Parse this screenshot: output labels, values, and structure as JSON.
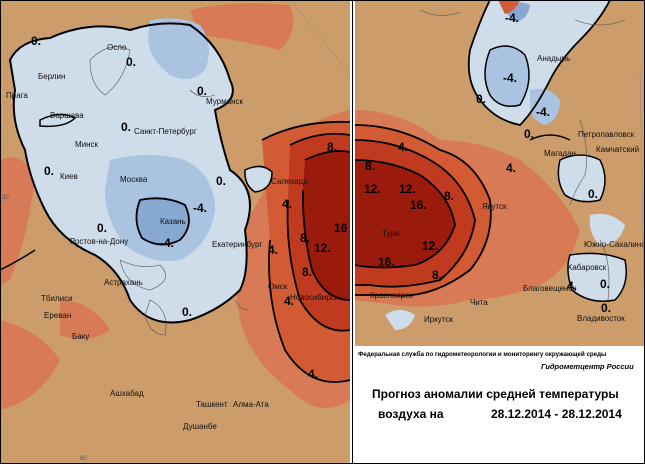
{
  "header": {
    "agency": "Федеральная служба по гидрометеорологии и мониторингу окружающей среды",
    "brand": "Гидрометцентр России"
  },
  "title": {
    "line1": "Прогноз аномалии средней температуры",
    "line2_label": "воздуха на",
    "period": "28.12.2014 - 28.12.2014"
  },
  "colors": {
    "cold_light": "#cfdcea",
    "cold_medium": "#a9c3e0",
    "cold_strong": "#87a8d0",
    "near_normal": "#cc9c6a",
    "warm_light": "#d87a56",
    "warm_medium": "#d35b34",
    "warm_strong": "#c03a1f",
    "warm_extreme": "#9a1a0c"
  },
  "grid_labels": {
    "lat_30": "30",
    "lon_60": "60"
  },
  "left_map": {
    "cities": [
      {
        "id": "oslo",
        "name": "Осло"
      },
      {
        "id": "berlin",
        "name": "Берлин"
      },
      {
        "id": "praga",
        "name": "Прага"
      },
      {
        "id": "varshava",
        "name": "Варшава"
      },
      {
        "id": "minsk",
        "name": "Минск"
      },
      {
        "id": "kiev",
        "name": "Киев"
      },
      {
        "id": "moskva",
        "name": "Москва"
      },
      {
        "id": "spb",
        "name": "Санкт-Петербург"
      },
      {
        "id": "murmansk",
        "name": "Мурманск"
      },
      {
        "id": "kazan",
        "name": "Казань"
      },
      {
        "id": "rostov",
        "name": "Ростов-на-Дону"
      },
      {
        "id": "astrakhan",
        "name": "Астрахань"
      },
      {
        "id": "tbilisi",
        "name": "Тбилиси"
      },
      {
        "id": "erevan",
        "name": "Ереван"
      },
      {
        "id": "baku",
        "name": "Баку"
      },
      {
        "id": "ashkhabad",
        "name": "Ашхабад"
      },
      {
        "id": "tashkent",
        "name": "Ташкент"
      },
      {
        "id": "almaty",
        "name": "Алма-Ата"
      },
      {
        "id": "dushanbe",
        "name": "Душанбе"
      },
      {
        "id": "ekb",
        "name": "Екатеринбург"
      },
      {
        "id": "salekhard",
        "name": "Салехард"
      },
      {
        "id": "omsk",
        "name": "Омск"
      },
      {
        "id": "novosibirsk",
        "name": "Новосибирск"
      }
    ],
    "isolines": [
      "0.",
      "0.",
      "0.",
      "0.",
      "0.",
      "0.",
      "0.",
      "0.",
      "-4.",
      "-4.",
      "4.",
      "4.",
      "4.",
      "4.",
      "8.",
      "8.",
      "8.",
      "12.",
      "16"
    ]
  },
  "right_map": {
    "cities": [
      {
        "id": "anadyr",
        "name": "Анадырь"
      },
      {
        "id": "petropavlovsk",
        "name": "Петропавловск"
      },
      {
        "id": "kamchatsky",
        "name": "Камчатский"
      },
      {
        "id": "magadan",
        "name": "Магадан"
      },
      {
        "id": "yakutsk",
        "name": "Якутск"
      },
      {
        "id": "tura",
        "name": "Тура"
      },
      {
        "id": "krasnoyarsk",
        "name": "Красноярск"
      },
      {
        "id": "irkutsk",
        "name": "Иркутск"
      },
      {
        "id": "chita",
        "name": "Чита"
      },
      {
        "id": "blagoveshchensk",
        "name": "Благовещенск"
      },
      {
        "id": "khabarovsk",
        "name": "Хабаровск"
      },
      {
        "id": "yuzhno",
        "name": "Южно-Сахалинск"
      },
      {
        "id": "vladivostok",
        "name": "Владивосток"
      }
    ],
    "isolines": [
      "-4.",
      "-4.",
      "-4.",
      "0.",
      "0.",
      "0.",
      "0.",
      "4.",
      "4.",
      "8.",
      "8.",
      "8.",
      "12.",
      "12.",
      "12.",
      "16.",
      "16.",
      "4.",
      "0."
    ]
  }
}
